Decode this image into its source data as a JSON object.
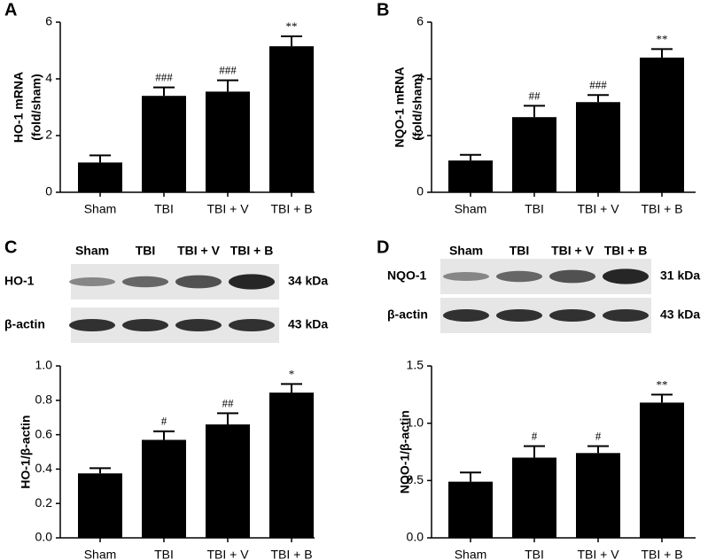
{
  "chart_data": [
    {
      "type": "bar",
      "panel": "A",
      "ylabel": [
        "HO-1 mRNA",
        "(fold/sham)"
      ],
      "categories": [
        "Sham",
        "TBI",
        "TBI + V",
        "TBI + B"
      ],
      "values": [
        1.05,
        3.4,
        3.55,
        5.15
      ],
      "errors": [
        0.25,
        0.3,
        0.4,
        0.35
      ],
      "annotations": [
        null,
        "###",
        "###",
        "**"
      ],
      "color": "#000000",
      "ylim": [
        0,
        6
      ],
      "yticks": [
        0,
        2,
        4,
        6
      ]
    },
    {
      "type": "bar",
      "panel": "B",
      "ylabel": [
        "NQO-1 mRNA",
        "(fold/sham)"
      ],
      "categories": [
        "Sham",
        "TBI",
        "TBI + V",
        "TBI + B"
      ],
      "values": [
        1.12,
        2.65,
        3.18,
        4.75
      ],
      "errors": [
        0.2,
        0.4,
        0.25,
        0.3
      ],
      "annotations": [
        null,
        "##",
        "###",
        "**"
      ],
      "color": "#000000",
      "ylim": [
        0,
        6
      ],
      "yticks": [
        0,
        2,
        4,
        6
      ]
    },
    {
      "type": "bar",
      "panel": "C",
      "ylabel": [
        "HO-1/β-actin"
      ],
      "blot": {
        "lanes": [
          "Sham",
          "TBI",
          "TBI + V",
          "TBI + B"
        ],
        "rows": [
          {
            "label": "HO-1",
            "size": "34 kDa"
          },
          {
            "label": "β-actin",
            "size": "43 kDa"
          }
        ]
      },
      "categories": [
        "Sham",
        "TBI",
        "TBI + V",
        "TBI + B"
      ],
      "values": [
        0.375,
        0.57,
        0.66,
        0.845
      ],
      "errors": [
        0.03,
        0.05,
        0.065,
        0.05
      ],
      "annotations": [
        null,
        "#",
        "##",
        "*"
      ],
      "color": "#000000",
      "ylim": [
        0,
        1
      ],
      "yticks": [
        {
          "value": 0,
          "label": "0.0"
        },
        0.2,
        0.4,
        0.6,
        0.8,
        {
          "value": 1,
          "label": "1.0"
        }
      ]
    },
    {
      "type": "bar",
      "panel": "D",
      "ylabel": [
        "NQO-1/β-actin"
      ],
      "blot": {
        "lanes": [
          "Sham",
          "TBI",
          "TBI + V",
          "TBI + B"
        ],
        "rows": [
          {
            "label": "NQO-1",
            "size": "31 kDa"
          },
          {
            "label": "β-actin",
            "size": "43 kDa"
          }
        ]
      },
      "categories": [
        "Sham",
        "TBI",
        "TBI + V",
        "TBI + B"
      ],
      "values": [
        0.49,
        0.7,
        0.74,
        1.18
      ],
      "errors": [
        0.08,
        0.1,
        0.06,
        0.07
      ],
      "annotations": [
        null,
        "#",
        "#",
        "**"
      ],
      "color": "#000000",
      "ylim": [
        0,
        1.5
      ],
      "yticks": [
        {
          "value": 0,
          "label": "0.0"
        },
        0.5,
        {
          "value": 1,
          "label": "1.0"
        },
        1.5
      ]
    }
  ]
}
